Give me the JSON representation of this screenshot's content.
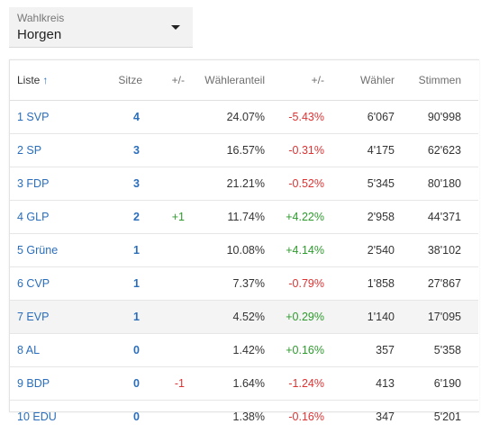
{
  "dropdown": {
    "label": "Wahlkreis",
    "value": "Horgen"
  },
  "table": {
    "headers": {
      "liste": "Liste",
      "sort_icon": "↑",
      "sitze": "Sitze",
      "sitze_change": "+/-",
      "anteil": "Wähleranteil",
      "anteil_change": "+/-",
      "waehler": "Wähler",
      "stimmen": "Stimmen"
    },
    "rows": [
      {
        "liste": "1 SVP",
        "sitze": "4",
        "sitze_change": "",
        "anteil": "24.07%",
        "anteil_change": "-5.43%",
        "waehler": "6'067",
        "stimmen": "90'998"
      },
      {
        "liste": "2 SP",
        "sitze": "3",
        "sitze_change": "",
        "anteil": "16.57%",
        "anteil_change": "-0.31%",
        "waehler": "4'175",
        "stimmen": "62'623"
      },
      {
        "liste": "3 FDP",
        "sitze": "3",
        "sitze_change": "",
        "anteil": "21.21%",
        "anteil_change": "-0.52%",
        "waehler": "5'345",
        "stimmen": "80'180"
      },
      {
        "liste": "4 GLP",
        "sitze": "2",
        "sitze_change": "+1",
        "anteil": "11.74%",
        "anteil_change": "+4.22%",
        "waehler": "2'958",
        "stimmen": "44'371"
      },
      {
        "liste": "5 Grüne",
        "sitze": "1",
        "sitze_change": "",
        "anteil": "10.08%",
        "anteil_change": "+4.14%",
        "waehler": "2'540",
        "stimmen": "38'102"
      },
      {
        "liste": "6 CVP",
        "sitze": "1",
        "sitze_change": "",
        "anteil": "7.37%",
        "anteil_change": "-0.79%",
        "waehler": "1'858",
        "stimmen": "27'867"
      },
      {
        "liste": "7 EVP",
        "sitze": "1",
        "sitze_change": "",
        "anteil": "4.52%",
        "anteil_change": "+0.29%",
        "waehler": "1'140",
        "stimmen": "17'095"
      },
      {
        "liste": "8 AL",
        "sitze": "0",
        "sitze_change": "",
        "anteil": "1.42%",
        "anteil_change": "+0.16%",
        "waehler": "357",
        "stimmen": "5'358"
      },
      {
        "liste": "9 BDP",
        "sitze": "0",
        "sitze_change": "-1",
        "anteil": "1.64%",
        "anteil_change": "-1.24%",
        "waehler": "413",
        "stimmen": "6'190"
      },
      {
        "liste": "10 EDU",
        "sitze": "0",
        "sitze_change": "",
        "anteil": "1.38%",
        "anteil_change": "-0.16%",
        "waehler": "347",
        "stimmen": "5'201"
      }
    ]
  },
  "colors": {
    "link": "#2a6ebb",
    "positive": "#2e9a2e",
    "negative": "#dd3333"
  }
}
